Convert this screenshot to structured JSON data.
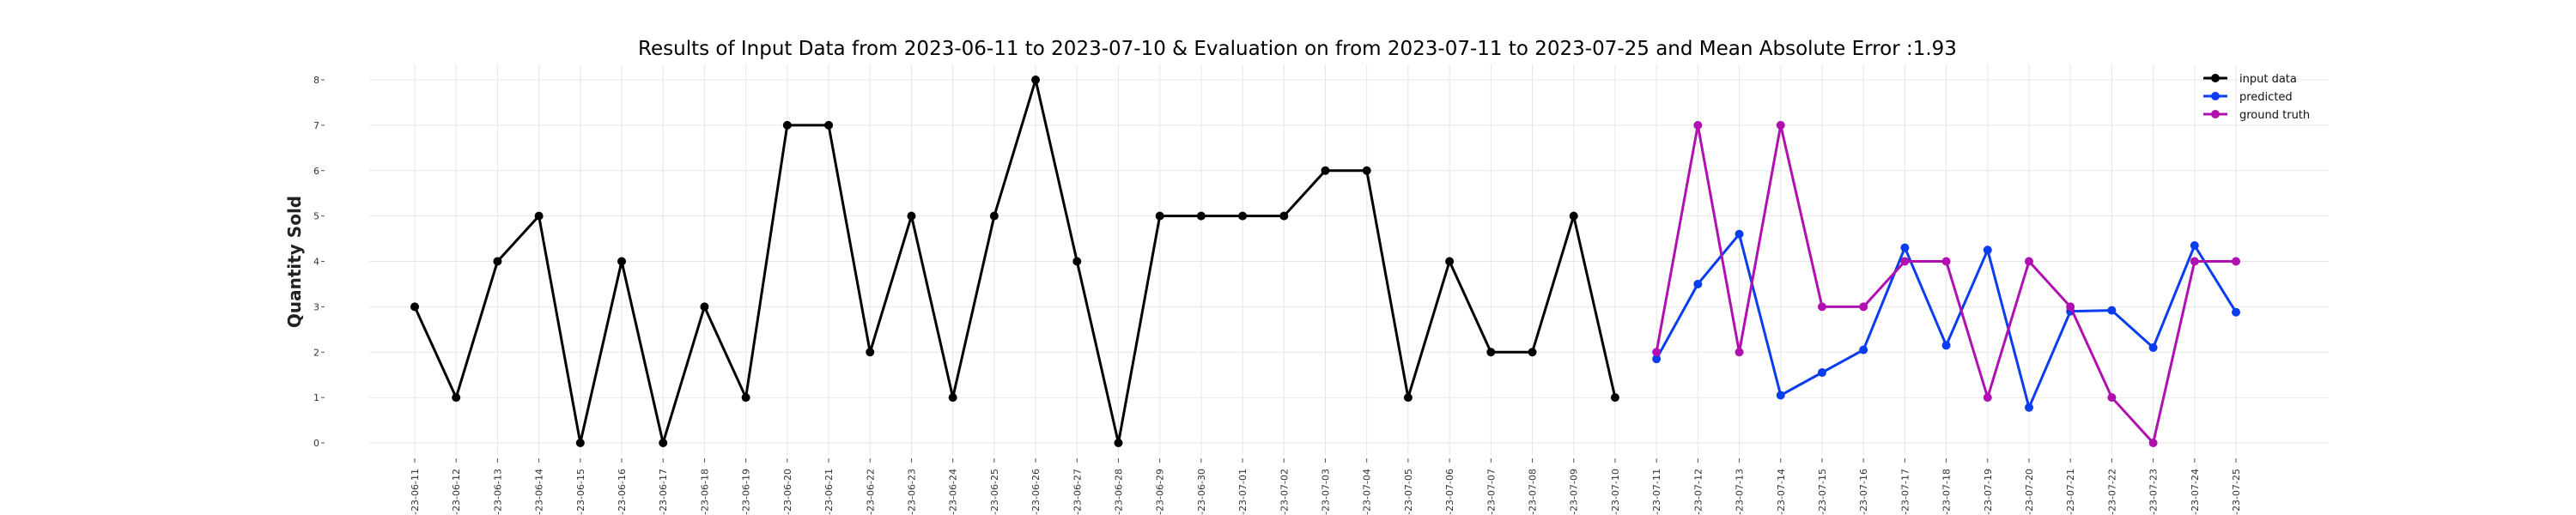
{
  "chart_data": {
    "type": "line",
    "title": "Results of Input Data from 2023-06-11 to 2023-07-10 & Evaluation on from 2023-07-11 to 2023-07-25 and Mean Absolute Error  :1.93",
    "xlabel": "",
    "ylabel": "Quantity Sold",
    "ylim": [
      0,
      8
    ],
    "yticks": [
      "0",
      "1",
      "2",
      "3",
      "4",
      "5",
      "6",
      "7",
      "8"
    ],
    "grid": true,
    "legend_position": "top-right",
    "x": [
      "2023-06-11",
      "2023-06-12",
      "2023-06-13",
      "2023-06-14",
      "2023-06-15",
      "2023-06-16",
      "2023-06-17",
      "2023-06-18",
      "2023-06-19",
      "2023-06-20",
      "2023-06-21",
      "2023-06-22",
      "2023-06-23",
      "2023-06-24",
      "2023-06-25",
      "2023-06-26",
      "2023-06-27",
      "2023-06-28",
      "2023-06-29",
      "2023-06-30",
      "2023-07-01",
      "2023-07-02",
      "2023-07-03",
      "2023-07-04",
      "2023-07-05",
      "2023-07-06",
      "2023-07-07",
      "2023-07-08",
      "2023-07-09",
      "2023-07-10",
      "2023-07-11",
      "2023-07-12",
      "2023-07-13",
      "2023-07-14",
      "2023-07-15",
      "2023-07-16",
      "2023-07-17",
      "2023-07-18",
      "2023-07-19",
      "2023-07-20",
      "2023-07-21",
      "2023-07-22",
      "2023-07-23",
      "2023-07-24",
      "2023-07-25"
    ],
    "xtick_labels": [
      "-23-06-11",
      "-23-06-12",
      "-23-06-13",
      "-23-06-14",
      "-23-06-15",
      "-23-06-16",
      "-23-06-17",
      "-23-06-18",
      "-23-06-19",
      "-23-06-20",
      "-23-06-21",
      "-23-06-22",
      "-23-06-23",
      "-23-06-24",
      "-23-06-25",
      "-23-06-26",
      "-23-06-27",
      "-23-06-28",
      "-23-06-29",
      "-23-06-30",
      "-23-07-01",
      "-23-07-02",
      "-23-07-03",
      "-23-07-04",
      "-23-07-05",
      "-23-07-06",
      "-23-07-07",
      "-23-07-08",
      "-23-07-09",
      "-23-07-10",
      "-23-07-11",
      "-23-07-12",
      "-23-07-13",
      "-23-07-14",
      "-23-07-15",
      "-23-07-16",
      "-23-07-17",
      "-23-07-18",
      "-23-07-19",
      "-23-07-20",
      "-23-07-21",
      "-23-07-22",
      "-23-07-23",
      "-23-07-24",
      "-23-07-25"
    ],
    "series": [
      {
        "name": "input data",
        "color": "#000000",
        "x": [
          "2023-06-11",
          "2023-06-12",
          "2023-06-13",
          "2023-06-14",
          "2023-06-15",
          "2023-06-16",
          "2023-06-17",
          "2023-06-18",
          "2023-06-19",
          "2023-06-20",
          "2023-06-21",
          "2023-06-22",
          "2023-06-23",
          "2023-06-24",
          "2023-06-25",
          "2023-06-26",
          "2023-06-27",
          "2023-06-28",
          "2023-06-29",
          "2023-06-30",
          "2023-07-01",
          "2023-07-02",
          "2023-07-03",
          "2023-07-04",
          "2023-07-05",
          "2023-07-06",
          "2023-07-07",
          "2023-07-08",
          "2023-07-09",
          "2023-07-10"
        ],
        "values": [
          3,
          1,
          4,
          5,
          0,
          4,
          0,
          3,
          1,
          7,
          7,
          2,
          5,
          1,
          5,
          8,
          4,
          0,
          5,
          5,
          5,
          5,
          6,
          6,
          1,
          4,
          2,
          2,
          5,
          1
        ]
      },
      {
        "name": "predicted",
        "color": "#0a3cf0",
        "x": [
          "2023-07-11",
          "2023-07-12",
          "2023-07-13",
          "2023-07-14",
          "2023-07-15",
          "2023-07-16",
          "2023-07-17",
          "2023-07-18",
          "2023-07-19",
          "2023-07-20",
          "2023-07-21",
          "2023-07-22",
          "2023-07-23",
          "2023-07-24",
          "2023-07-25"
        ],
        "values": [
          1.85,
          3.5,
          4.6,
          1.05,
          1.55,
          2.05,
          4.3,
          2.15,
          4.25,
          0.78,
          2.9,
          2.92,
          2.1,
          4.35,
          2.88
        ]
      },
      {
        "name": "ground truth",
        "color": "#b010b0",
        "x": [
          "2023-07-11",
          "2023-07-12",
          "2023-07-13",
          "2023-07-14",
          "2023-07-15",
          "2023-07-16",
          "2023-07-17",
          "2023-07-18",
          "2023-07-19",
          "2023-07-20",
          "2023-07-21",
          "2023-07-22",
          "2023-07-23",
          "2023-07-24",
          "2023-07-25"
        ],
        "values": [
          2,
          7,
          2,
          7,
          3,
          3,
          4,
          4,
          1,
          4,
          3,
          1,
          0,
          4,
          4
        ]
      }
    ]
  }
}
